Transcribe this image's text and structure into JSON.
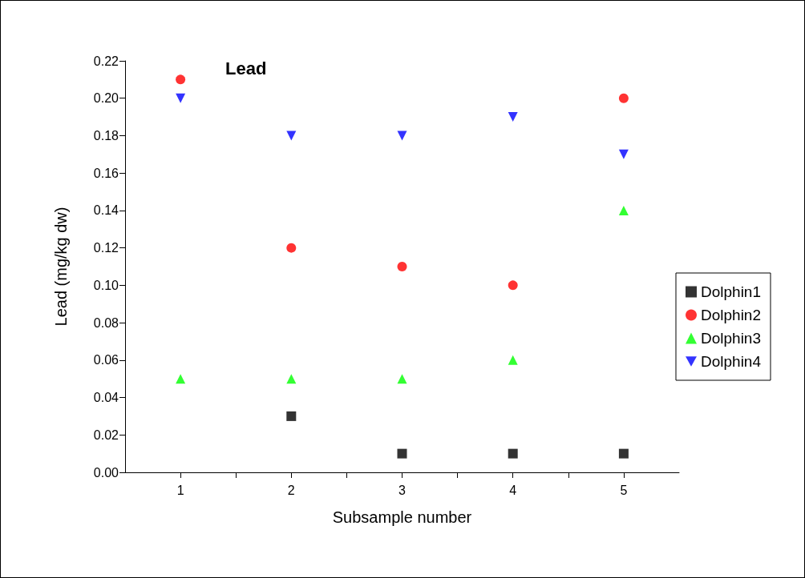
{
  "chart_data": {
    "type": "scatter",
    "title": "Lead",
    "xlabel": "Subsample number",
    "ylabel": "Lead (mg/kg dw)",
    "xlim": [
      0.5,
      5.5
    ],
    "xticks": [
      1,
      {
        "value": 1.5,
        "label": null
      },
      2,
      {
        "value": 2.5,
        "label": null
      },
      3,
      {
        "value": 3.5,
        "label": null
      },
      4,
      {
        "value": 4.5,
        "label": null
      },
      5
    ],
    "ylim": [
      0,
      0.22
    ],
    "yticks": [
      {
        "value": 0,
        "label": "0.00"
      },
      {
        "value": 0.02,
        "label": "0.02"
      },
      {
        "value": 0.04,
        "label": "0.04"
      },
      {
        "value": 0.06,
        "label": "0.06"
      },
      {
        "value": 0.08,
        "label": "0.08"
      },
      {
        "value": 0.1,
        "label": "0.10"
      },
      {
        "value": 0.12,
        "label": "0.12"
      },
      {
        "value": 0.14,
        "label": "0.14"
      },
      {
        "value": 0.16,
        "label": "0.16"
      },
      {
        "value": 0.18,
        "label": "0.18"
      },
      {
        "value": 0.2,
        "label": "0.20"
      },
      {
        "value": 0.22,
        "label": "0.22"
      }
    ],
    "grid": false,
    "legend": "right",
    "series": [
      {
        "name": "Dolphin1",
        "color": "#000000",
        "marker": "square",
        "x": [
          2,
          3,
          4,
          5
        ],
        "values": [
          0.03,
          0.01,
          0.01,
          0.01
        ]
      },
      {
        "name": "Dolphin2",
        "color": "#ff0000",
        "marker": "circle",
        "x": [
          1,
          2,
          3,
          4,
          5
        ],
        "values": [
          0.21,
          0.12,
          0.11,
          0.1,
          0.2
        ]
      },
      {
        "name": "Dolphin3",
        "color": "#00ff00",
        "marker": "triangle",
        "x": [
          1,
          2,
          3,
          4,
          5
        ],
        "values": [
          0.05,
          0.05,
          0.05,
          0.06,
          0.14
        ]
      },
      {
        "name": "Dolphin4",
        "color": "#0000ff",
        "marker": "triangle-down",
        "x": [
          1,
          2,
          3,
          4,
          5
        ],
        "values": [
          0.2,
          0.18,
          0.18,
          0.19,
          0.17
        ]
      }
    ]
  }
}
